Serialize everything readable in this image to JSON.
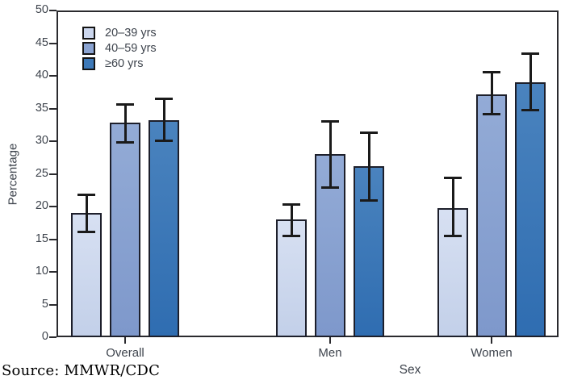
{
  "figure": {
    "source_line": "Source: MMWR/CDC"
  },
  "chart_data": {
    "type": "bar",
    "title": "",
    "xlabel": "Sex",
    "ylabel": "Percentage",
    "ylim": [
      0,
      50
    ],
    "yticks": [
      0,
      5,
      10,
      15,
      20,
      25,
      30,
      35,
      40,
      45,
      50
    ],
    "grid": false,
    "legend_position": "top-left-inside",
    "error_bars": true,
    "categories": [
      "Overall",
      "Men",
      "Women"
    ],
    "series": [
      {
        "name": "20–39 yrs",
        "color": "#ccd7ee",
        "fill_top": "#d7e0f2",
        "fill_bottom": "#c3d0e9",
        "values": [
          19.0,
          18.0,
          19.8
        ],
        "ci_low": [
          16.1,
          15.4,
          15.4
        ],
        "ci_high": [
          21.8,
          20.4,
          24.4
        ]
      },
      {
        "name": "40–59 yrs",
        "color": "#8aa3d1",
        "fill_top": "#93abd6",
        "fill_bottom": "#7e98cb",
        "values": [
          32.8,
          28.0,
          37.2
        ],
        "ci_low": [
          29.8,
          22.9,
          34.1
        ],
        "ci_high": [
          35.7,
          33.1,
          40.6
        ]
      },
      {
        "name": "≥60 yrs",
        "color": "#3d79b8",
        "fill_top": "#4a83be",
        "fill_bottom": "#2f6db1",
        "values": [
          33.2,
          26.2,
          39.0
        ],
        "ci_low": [
          30.0,
          20.9,
          34.7
        ],
        "ci_high": [
          36.5,
          31.4,
          43.5
        ]
      }
    ]
  }
}
